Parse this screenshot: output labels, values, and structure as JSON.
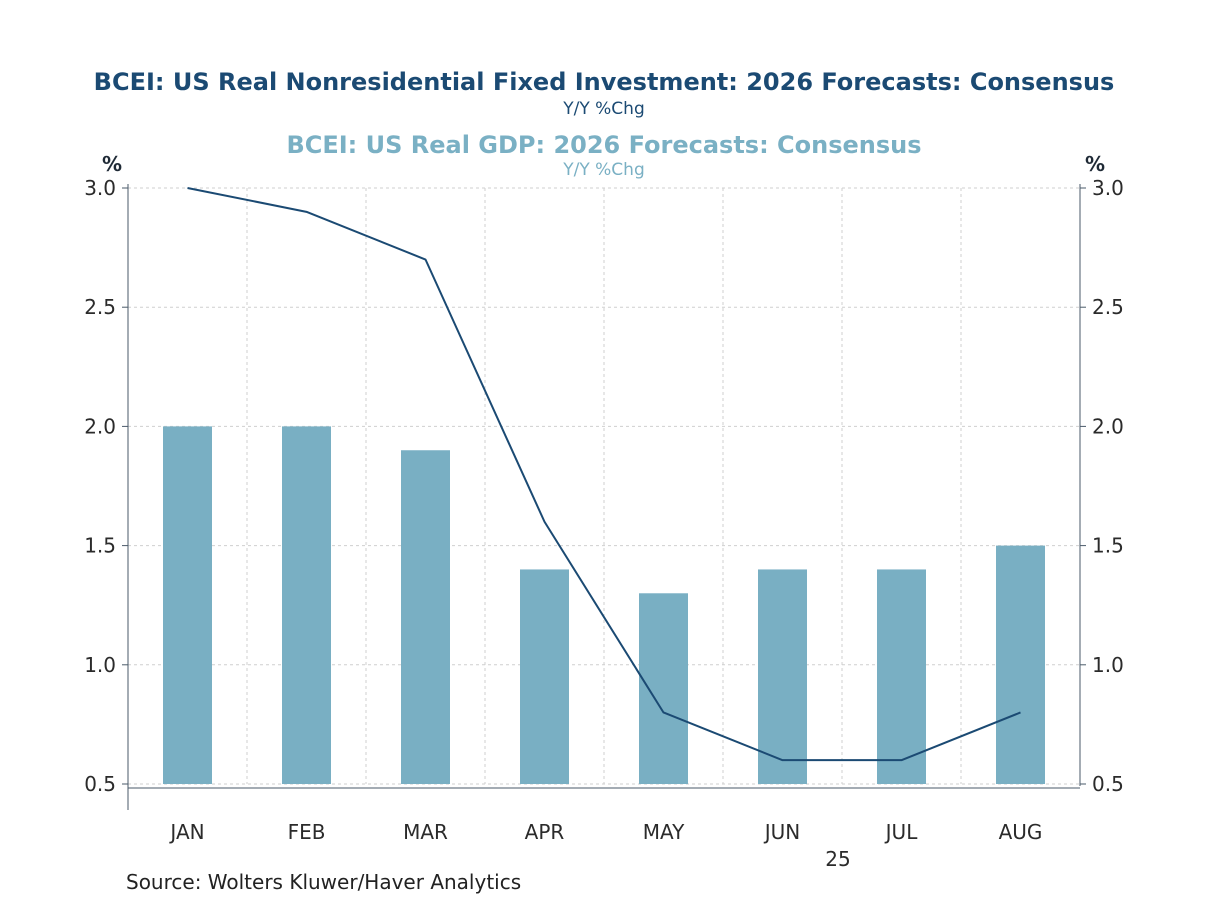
{
  "titles": {
    "primary": "BCEI: US Real Nonresidential Fixed Investment: 2026 Forecasts: Consensus",
    "primary_unit": "Y/Y %Chg",
    "secondary": "BCEI: US Real GDP: 2026 Forecasts: Consensus",
    "secondary_unit": "Y/Y %Chg"
  },
  "axis_unit_left": "%",
  "axis_unit_right": "%",
  "source": "Source:  Wolters Kluwer/Haver Analytics",
  "colors": {
    "line": "#1b4a73",
    "bar": "#79afc3",
    "grid": "#cfcfcf",
    "axis": "#4a5a6a"
  },
  "chart_data": {
    "type": "bar",
    "categories": [
      "JAN",
      "FEB",
      "MAR",
      "APR",
      "MAY",
      "JUN",
      "JUL",
      "AUG"
    ],
    "year_label": "25",
    "ylim": [
      0.5,
      3.0
    ],
    "yticks": [
      "3.0",
      "2.5",
      "2.0",
      "1.5",
      "1.0",
      "0.5"
    ],
    "grid": true,
    "series": [
      {
        "name": "BCEI: US Real GDP: 2026 Forecasts: Consensus",
        "type": "bar",
        "axis": "left",
        "values": [
          2.0,
          2.0,
          1.9,
          1.4,
          1.3,
          1.4,
          1.4,
          1.5
        ]
      },
      {
        "name": "BCEI: US Real Nonresidential Fixed Investment: 2026 Forecasts: Consensus",
        "type": "line",
        "axis": "right",
        "values": [
          3.0,
          2.9,
          2.7,
          1.6,
          0.8,
          0.6,
          0.6,
          0.8
        ]
      }
    ]
  }
}
